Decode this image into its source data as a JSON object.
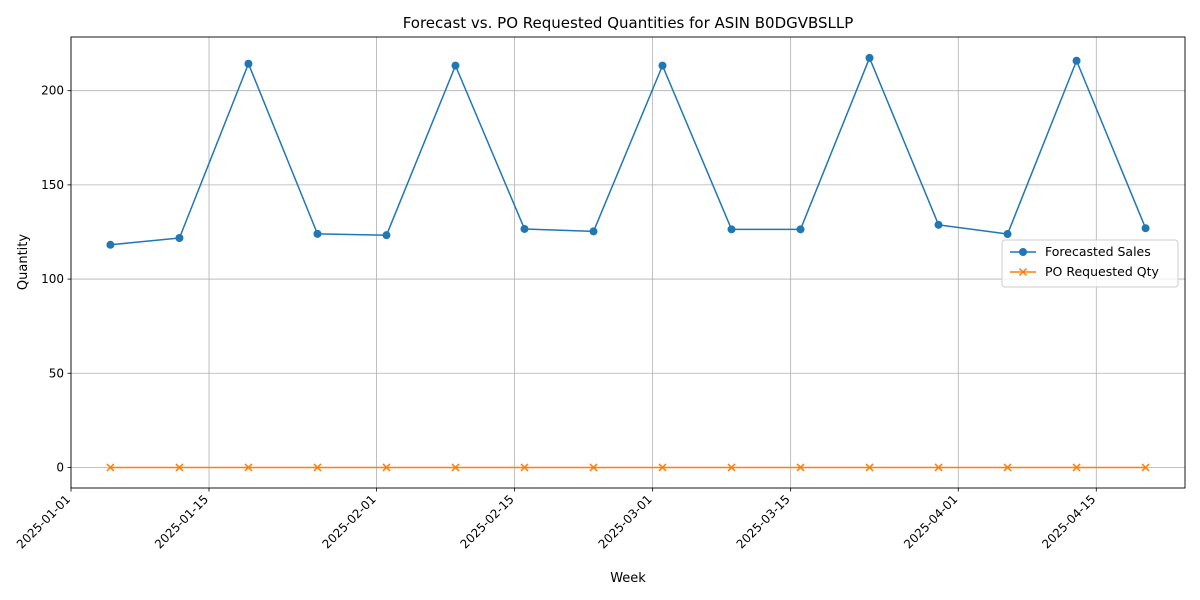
{
  "chart_data": {
    "type": "line",
    "title": "Forecast vs. PO Requested Quantities for ASIN B0DGVBSLLP",
    "xlabel": "Week",
    "ylabel": "Quantity",
    "x": [
      "2025-01-05",
      "2025-01-12",
      "2025-01-19",
      "2025-01-26",
      "2025-02-02",
      "2025-02-09",
      "2025-02-16",
      "2025-02-23",
      "2025-03-02",
      "2025-03-09",
      "2025-03-16",
      "2025-03-23",
      "2025-03-30",
      "2025-04-06",
      "2025-04-13",
      "2025-04-20"
    ],
    "xlim": [
      "2025-01-01",
      "2025-04-24"
    ],
    "x_ticks": [
      "2025-01-01",
      "2025-01-15",
      "2025-02-01",
      "2025-02-15",
      "2025-03-01",
      "2025-03-15",
      "2025-04-01",
      "2025-04-15"
    ],
    "ylim": [
      -10.9,
      228.5
    ],
    "y_ticks": [
      0,
      50,
      100,
      150,
      200
    ],
    "grid": true,
    "legend_position": "center-right",
    "series": [
      {
        "name": "Forecasted Sales",
        "color": "#1f77b4",
        "marker": "circle",
        "values": [
          118.2,
          121.8,
          214.3,
          124.0,
          123.3,
          213.3,
          126.6,
          125.3,
          213.3,
          126.4,
          126.4,
          217.4,
          128.8,
          123.9,
          215.9,
          127.0
        ]
      },
      {
        "name": "PO Requested Qty",
        "color": "#ff7f0e",
        "marker": "x",
        "values": [
          0,
          0,
          0,
          0,
          0,
          0,
          0,
          0,
          0,
          0,
          0,
          0,
          0,
          0,
          0,
          0
        ]
      }
    ]
  }
}
